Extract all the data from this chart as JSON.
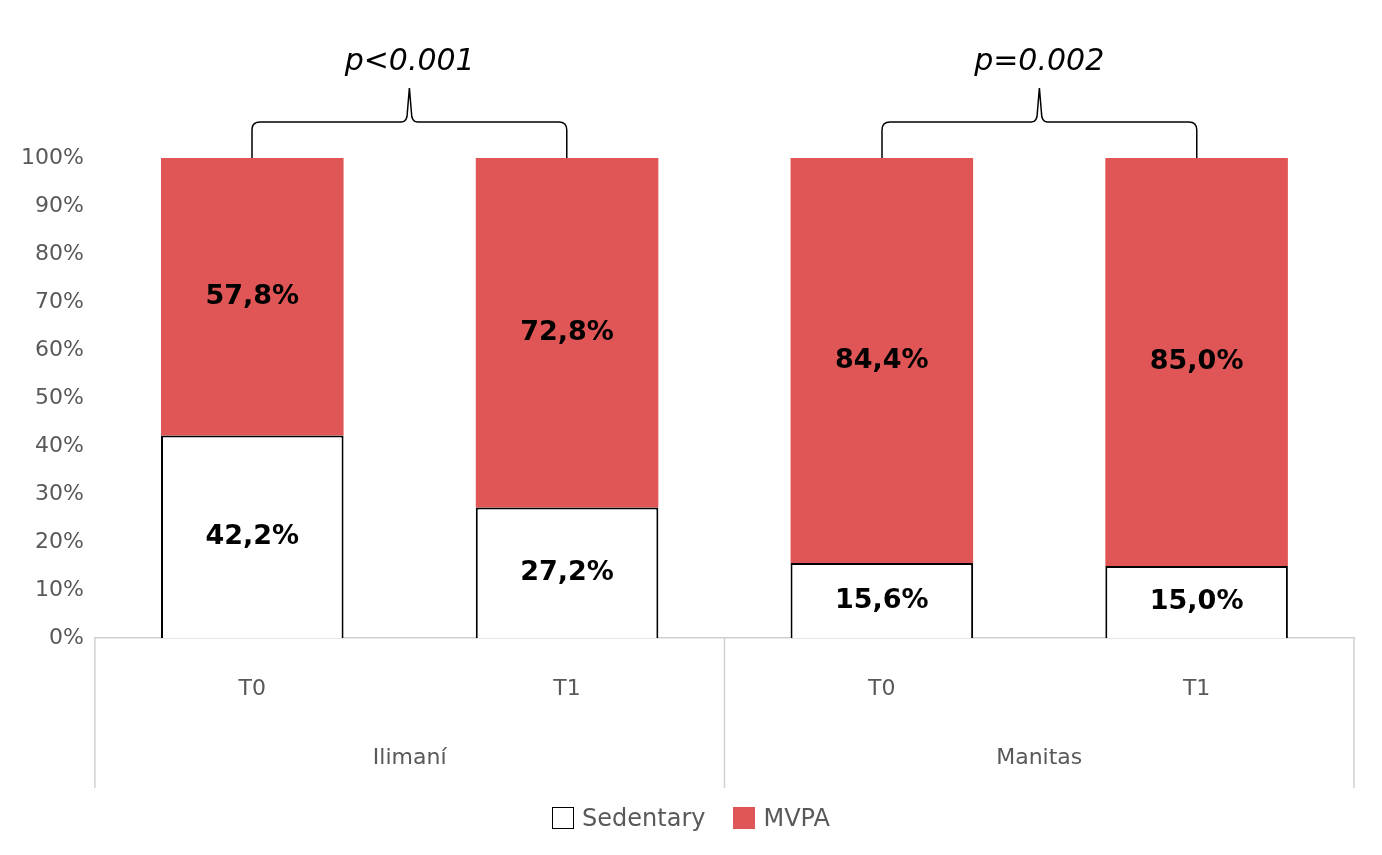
{
  "chart_data": {
    "type": "bar",
    "stacked": true,
    "categories": [
      "T0",
      "T1",
      "T0",
      "T1"
    ],
    "series": [
      {
        "name": "Sedentary",
        "color": "#ffffff",
        "values": [
          42.2,
          27.2,
          15.6,
          15.0
        ],
        "value_labels": [
          "42,2%",
          "27,2%",
          "15,6%",
          "15,0%"
        ]
      },
      {
        "name": "MVPA",
        "color": "#e05555",
        "values": [
          57.8,
          72.8,
          84.4,
          85.0
        ],
        "value_labels": [
          "57,8%",
          "72,8%",
          "84,4%",
          "85,0%"
        ]
      }
    ],
    "ylim": [
      0,
      100
    ],
    "yticks": [
      {
        "value": 0,
        "label": "0%"
      },
      {
        "value": 10,
        "label": "10%"
      },
      {
        "value": 20,
        "label": "20%"
      },
      {
        "value": 30,
        "label": "30%"
      },
      {
        "value": 40,
        "label": "40%"
      },
      {
        "value": 50,
        "label": "50%"
      },
      {
        "value": 60,
        "label": "60%"
      },
      {
        "value": 70,
        "label": "70%"
      },
      {
        "value": 80,
        "label": "80%"
      },
      {
        "value": 90,
        "label": "90%"
      },
      {
        "value": 100,
        "label": "100%"
      }
    ],
    "grid": false,
    "legend": "bottom",
    "annotations": [
      "p<0.001",
      "p=0.002",
      "Ilimaní",
      "Manitas"
    ]
  }
}
